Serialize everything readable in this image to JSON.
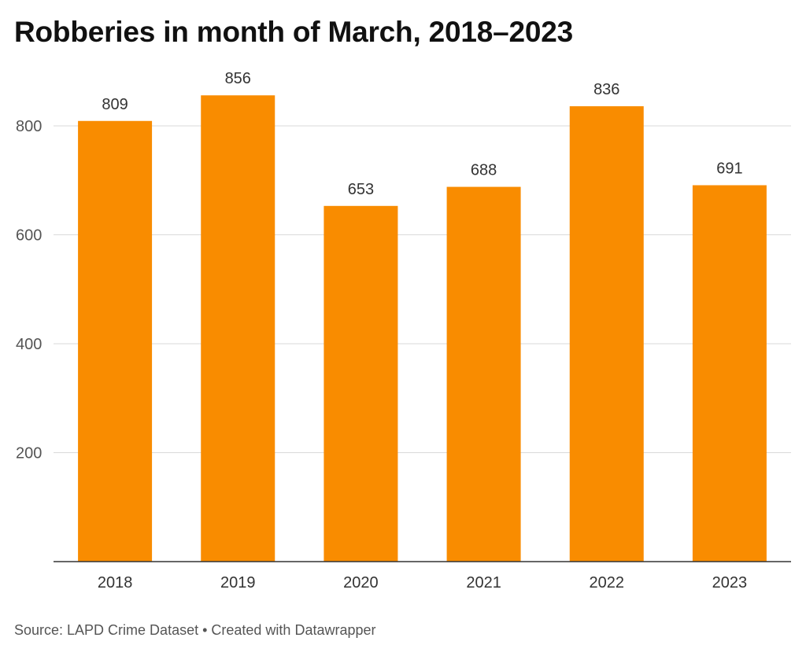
{
  "chart_data": {
    "type": "bar",
    "title": "Robberies in month of March, 2018–2023",
    "source": "Source: LAPD Crime Dataset • Created with Datawrapper",
    "categories": [
      "2018",
      "2019",
      "2020",
      "2021",
      "2022",
      "2023"
    ],
    "values": [
      809,
      856,
      653,
      688,
      836,
      691
    ],
    "data_labels": [
      "809",
      "856",
      "653",
      "688",
      "836",
      "691"
    ],
    "y_ticks": [
      200,
      400,
      600,
      800
    ],
    "y_tick_labels": [
      "200",
      "400",
      "600",
      "800"
    ],
    "ylim": [
      0,
      900
    ],
    "xlabel": "",
    "ylabel": "",
    "grid": true,
    "legend": "none",
    "bar_color": "#f98c00"
  }
}
